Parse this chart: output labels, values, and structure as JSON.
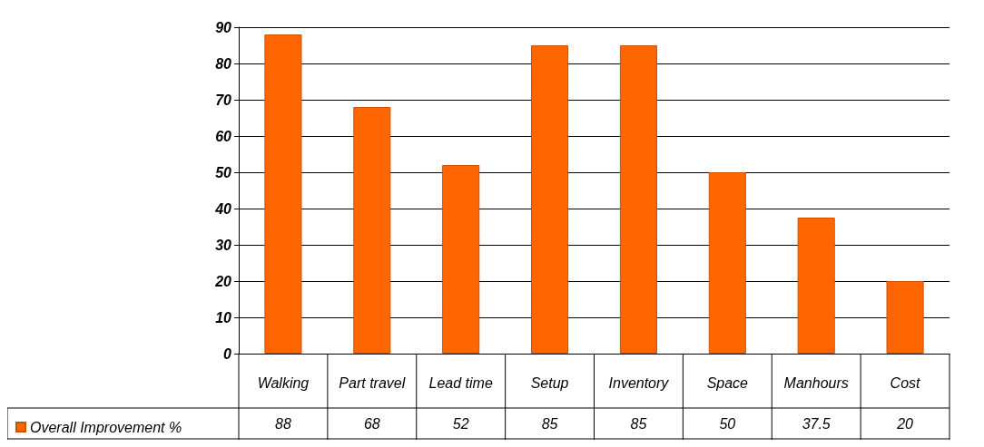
{
  "chart_data": {
    "type": "bar",
    "categories": [
      "Walking",
      "Part travel",
      "Lead time",
      "Setup",
      "Inventory",
      "Space",
      "Manhours",
      "Cost"
    ],
    "series": [
      {
        "name": "Overall Improvement %",
        "color": "#ff6600",
        "values": [
          88,
          68,
          52,
          85,
          85,
          50,
          37.5,
          20
        ]
      }
    ],
    "ylim": [
      0,
      90
    ],
    "yticks": [
      0,
      10,
      20,
      30,
      40,
      50,
      60,
      70,
      80,
      90
    ],
    "grid": "y",
    "legend": "bottom left",
    "data_labels": true
  }
}
